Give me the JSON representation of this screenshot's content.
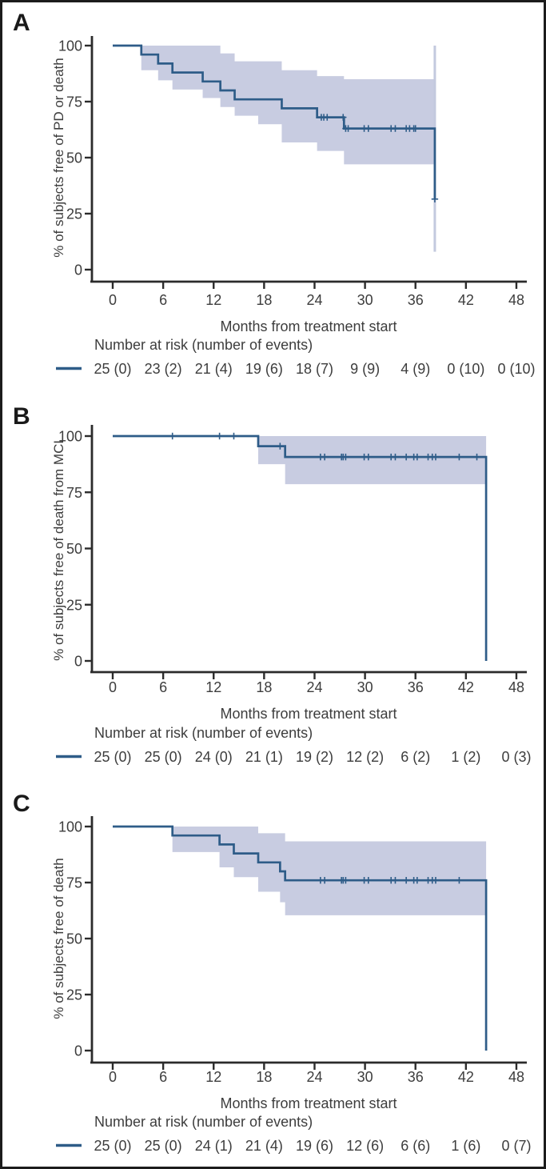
{
  "figure": {
    "x_label": "Months from treatment start",
    "risk_header": "Number at risk (number of events)",
    "x_ticks": [
      0,
      6,
      12,
      18,
      24,
      30,
      36,
      42,
      48
    ],
    "y_ticks": [
      100,
      75,
      50,
      25,
      0
    ],
    "censor_marker": "plus-tick",
    "colors": {
      "curve": "#2e5c88",
      "band": "#c8cce1",
      "band_final_line": "#c3c9de",
      "axis": "#2b2b2b",
      "text": "#3d3d3d",
      "frame": "#1c1c1c",
      "background": "#ffffff"
    }
  },
  "chart_data": [
    {
      "panel": "A",
      "type": "line",
      "subtype": "kaplan-meier-step",
      "ylabel": "% of subjects free of PD or death",
      "xlabel": "Months from treatment start",
      "xlim": [
        0,
        48
      ],
      "ylim": [
        0,
        100
      ],
      "grid": false,
      "start_value": 100,
      "steps": [
        [
          3.4,
          96
        ],
        [
          5.4,
          92
        ],
        [
          7.1,
          88
        ],
        [
          10.7,
          84
        ],
        [
          12.8,
          80
        ],
        [
          14.5,
          76
        ],
        [
          20.1,
          72
        ],
        [
          24.3,
          68
        ],
        [
          27.5,
          63
        ]
      ],
      "end": {
        "t": 38.3,
        "drop_to": 31.5
      },
      "censors": [
        [
          24.8,
          68
        ],
        [
          25.1,
          68
        ],
        [
          25.5,
          68
        ],
        [
          27.4,
          68
        ],
        [
          27.7,
          63
        ],
        [
          28.0,
          63
        ],
        [
          29.9,
          63
        ],
        [
          30.4,
          63
        ],
        [
          33.1,
          63
        ],
        [
          33.6,
          63
        ],
        [
          34.9,
          63
        ],
        [
          35.3,
          63
        ],
        [
          35.8,
          63
        ],
        [
          36.0,
          63
        ],
        [
          38.3,
          31.5
        ]
      ],
      "ci": [
        [
          3.4,
          89,
          100
        ],
        [
          5.4,
          84.5,
          100
        ],
        [
          7.1,
          80.4,
          100
        ],
        [
          10.7,
          76.6,
          100
        ],
        [
          12.8,
          72.6,
          96.5
        ],
        [
          14.5,
          68.7,
          93
        ],
        [
          17.3,
          64.9,
          93
        ],
        [
          20.1,
          56.8,
          89
        ],
        [
          24.3,
          53,
          86.4
        ],
        [
          27.5,
          47,
          85
        ]
      ],
      "ci_end_t": 38.3,
      "ci_final_line": {
        "t": 38.3,
        "lo": 8,
        "hi": 100
      },
      "risk": [
        "25 (0)",
        "23 (2)",
        "21 (4)",
        "19 (6)",
        "18 (7)",
        "9 (9)",
        "4 (9)",
        "0 (10)",
        "0 (10)"
      ]
    },
    {
      "panel": "B",
      "type": "line",
      "subtype": "kaplan-meier-step",
      "ylabel": "% of subjects free of death from MCL",
      "xlabel": "Months from treatment start",
      "xlim": [
        0,
        48
      ],
      "ylim": [
        0,
        100
      ],
      "grid": false,
      "start_value": 100,
      "steps": [
        [
          17.3,
          95.5
        ],
        [
          20.5,
          90.7
        ]
      ],
      "end": {
        "t": 44.4,
        "drop_to": 0
      },
      "censors": [
        [
          7.1,
          100
        ],
        [
          12.7,
          100
        ],
        [
          14.4,
          100
        ],
        [
          19.9,
          95.5
        ],
        [
          24.7,
          90.7
        ],
        [
          25.2,
          90.7
        ],
        [
          27.2,
          90.7
        ],
        [
          27.4,
          90.7
        ],
        [
          27.7,
          90.7
        ],
        [
          29.9,
          90.7
        ],
        [
          30.4,
          90.7
        ],
        [
          33.1,
          90.7
        ],
        [
          33.6,
          90.7
        ],
        [
          34.9,
          90.7
        ],
        [
          35.8,
          90.7
        ],
        [
          36.2,
          90.7
        ],
        [
          37.5,
          90.7
        ],
        [
          38.0,
          90.7
        ],
        [
          38.4,
          90.7
        ],
        [
          41.2,
          90.7
        ],
        [
          43.3,
          90.7
        ]
      ],
      "ci": [
        [
          17.3,
          87.5,
          100
        ],
        [
          20.5,
          78.6,
          100
        ]
      ],
      "ci_end_t": 44.4,
      "risk": [
        "25 (0)",
        "25 (0)",
        "24 (0)",
        "21 (1)",
        "19 (2)",
        "12 (2)",
        "6 (2)",
        "1 (2)",
        "0 (3)"
      ]
    },
    {
      "panel": "C",
      "type": "line",
      "subtype": "kaplan-meier-step",
      "ylabel": "% of subjects free of death",
      "xlabel": "Months from treatment start",
      "xlim": [
        0,
        48
      ],
      "ylim": [
        0,
        100
      ],
      "grid": false,
      "start_value": 100,
      "steps": [
        [
          7.1,
          96
        ],
        [
          12.7,
          92
        ],
        [
          14.4,
          88
        ],
        [
          17.3,
          84
        ],
        [
          19.9,
          80
        ],
        [
          20.5,
          76
        ]
      ],
      "end": {
        "t": 44.4,
        "drop_to": 0
      },
      "censors": [
        [
          24.7,
          76
        ],
        [
          25.2,
          76
        ],
        [
          27.2,
          76
        ],
        [
          27.4,
          76
        ],
        [
          27.7,
          76
        ],
        [
          29.9,
          76
        ],
        [
          30.4,
          76
        ],
        [
          33.1,
          76
        ],
        [
          33.6,
          76
        ],
        [
          34.9,
          76
        ],
        [
          35.8,
          76
        ],
        [
          36.2,
          76
        ],
        [
          37.5,
          76
        ],
        [
          38.0,
          76
        ],
        [
          38.4,
          76
        ],
        [
          41.2,
          76
        ]
      ],
      "ci": [
        [
          7.1,
          88.6,
          100
        ],
        [
          12.7,
          81.8,
          100
        ],
        [
          14.4,
          77.4,
          100
        ],
        [
          17.3,
          70.9,
          97
        ],
        [
          19.9,
          66.2,
          97
        ],
        [
          20.5,
          60.4,
          93.4
        ]
      ],
      "ci_end_t": 44.4,
      "risk": [
        "25 (0)",
        "25 (0)",
        "24 (1)",
        "21 (4)",
        "19 (6)",
        "12 (6)",
        "6 (6)",
        "1 (6)",
        "0 (7)"
      ]
    }
  ]
}
